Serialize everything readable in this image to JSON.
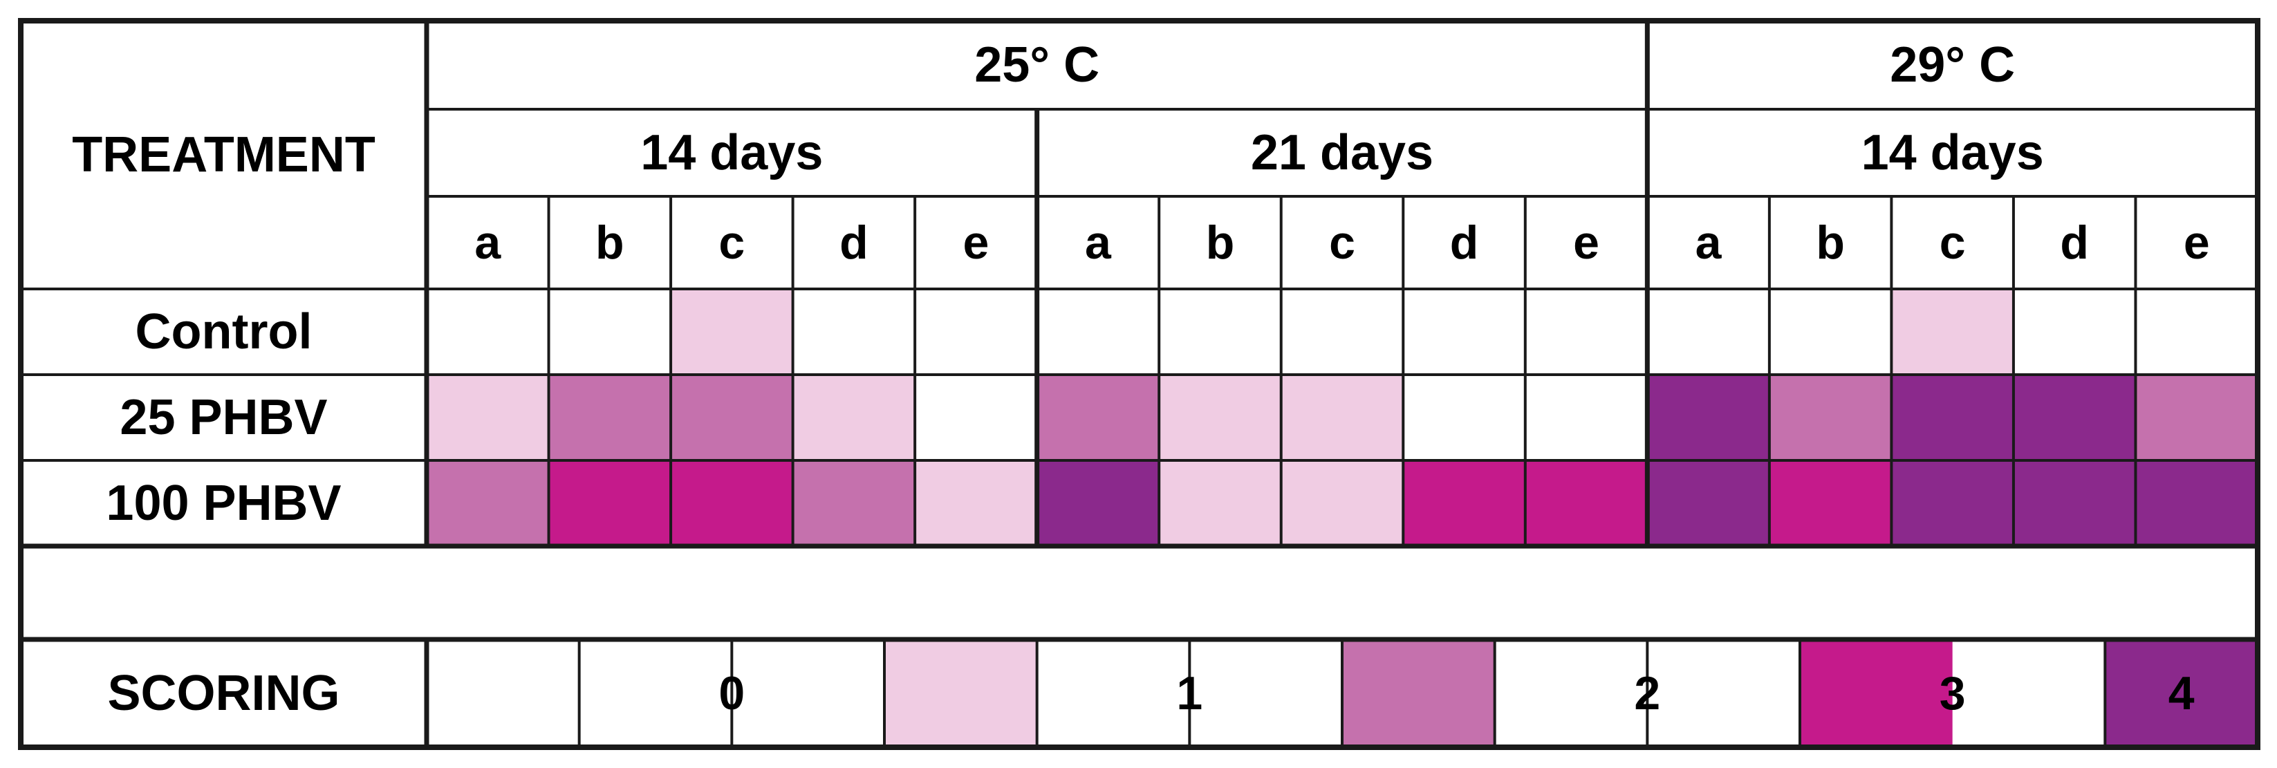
{
  "chart_data": {
    "type": "table",
    "row_header_label": "TREATMENT",
    "temperature_groups": [
      {
        "label": "25° C",
        "periods": [
          {
            "label": "14 days",
            "samples": [
              "a",
              "b",
              "c",
              "d",
              "e"
            ]
          },
          {
            "label": "21 days",
            "samples": [
              "a",
              "b",
              "c",
              "d",
              "e"
            ]
          }
        ]
      },
      {
        "label": "29° C",
        "periods": [
          {
            "label": "14 days",
            "samples": [
              "a",
              "b",
              "c",
              "d",
              "e"
            ]
          }
        ]
      }
    ],
    "rows": [
      {
        "label": "Control",
        "scores": [
          0,
          0,
          1,
          0,
          0,
          0,
          0,
          0,
          0,
          0,
          0,
          0,
          1,
          0,
          0
        ]
      },
      {
        "label": "25 PHBV",
        "scores": [
          1,
          2,
          2,
          1,
          0,
          2,
          1,
          1,
          0,
          0,
          4,
          2,
          4,
          4,
          2
        ]
      },
      {
        "label": "100 PHBV",
        "scores": [
          2,
          3,
          3,
          2,
          1,
          4,
          1,
          1,
          3,
          3,
          4,
          3,
          4,
          4,
          4
        ]
      }
    ],
    "scoring": {
      "label": "SCORING",
      "levels": [
        {
          "score": "0",
          "color": "#ffffff"
        },
        {
          "score": "1",
          "color": "#f0cce3"
        },
        {
          "score": "2",
          "color": "#c571ad"
        },
        {
          "score": "3",
          "color": "#c51a8b"
        },
        {
          "score": "4",
          "color": "#8b298c"
        }
      ]
    }
  }
}
